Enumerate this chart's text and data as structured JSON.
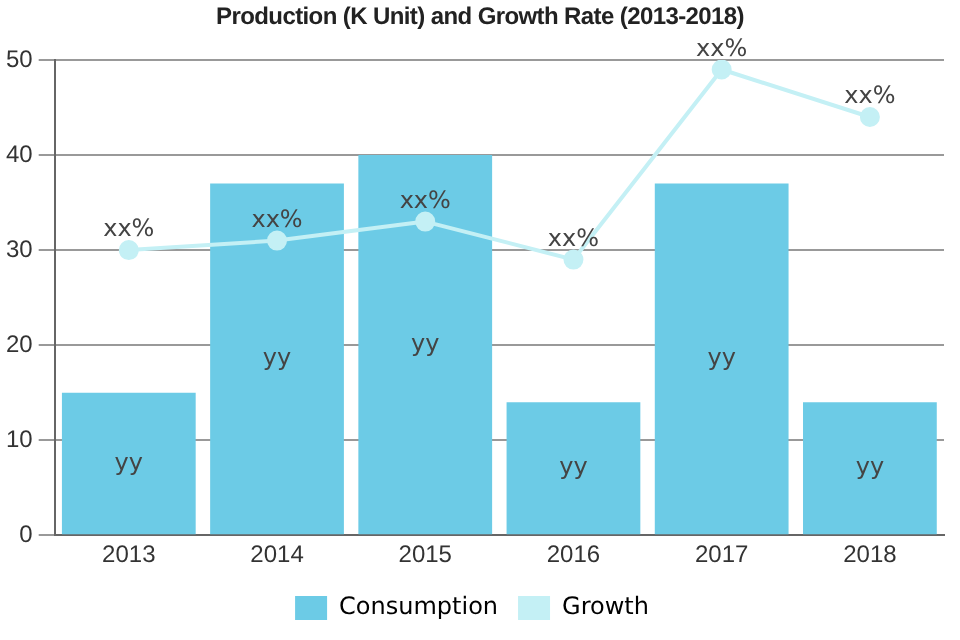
{
  "chart_data": {
    "type": "bar",
    "title": "Production (K Unit) and Growth Rate (2013-2018)",
    "categories": [
      "2013",
      "2014",
      "2015",
      "2016",
      "2017",
      "2018"
    ],
    "series": [
      {
        "name": "Consumption",
        "color": "#6ccbe6",
        "values": [
          15,
          37,
          40,
          14,
          37,
          14
        ],
        "value_labels": [
          "yy",
          "yy",
          "yy",
          "yy",
          "yy",
          "yy"
        ]
      },
      {
        "name": "Growth",
        "type": "line",
        "color": "#c4f0f5",
        "values": [
          30,
          31,
          33,
          29,
          49,
          44
        ],
        "value_labels": [
          "xx%",
          "xx%",
          "xx%",
          "xx%",
          "xx%",
          "xx%"
        ]
      }
    ],
    "ylim": [
      0,
      50
    ],
    "yticks": [
      0,
      10,
      20,
      30,
      40,
      50
    ],
    "grid": "y",
    "legend": "bottom",
    "marker": "circle"
  }
}
